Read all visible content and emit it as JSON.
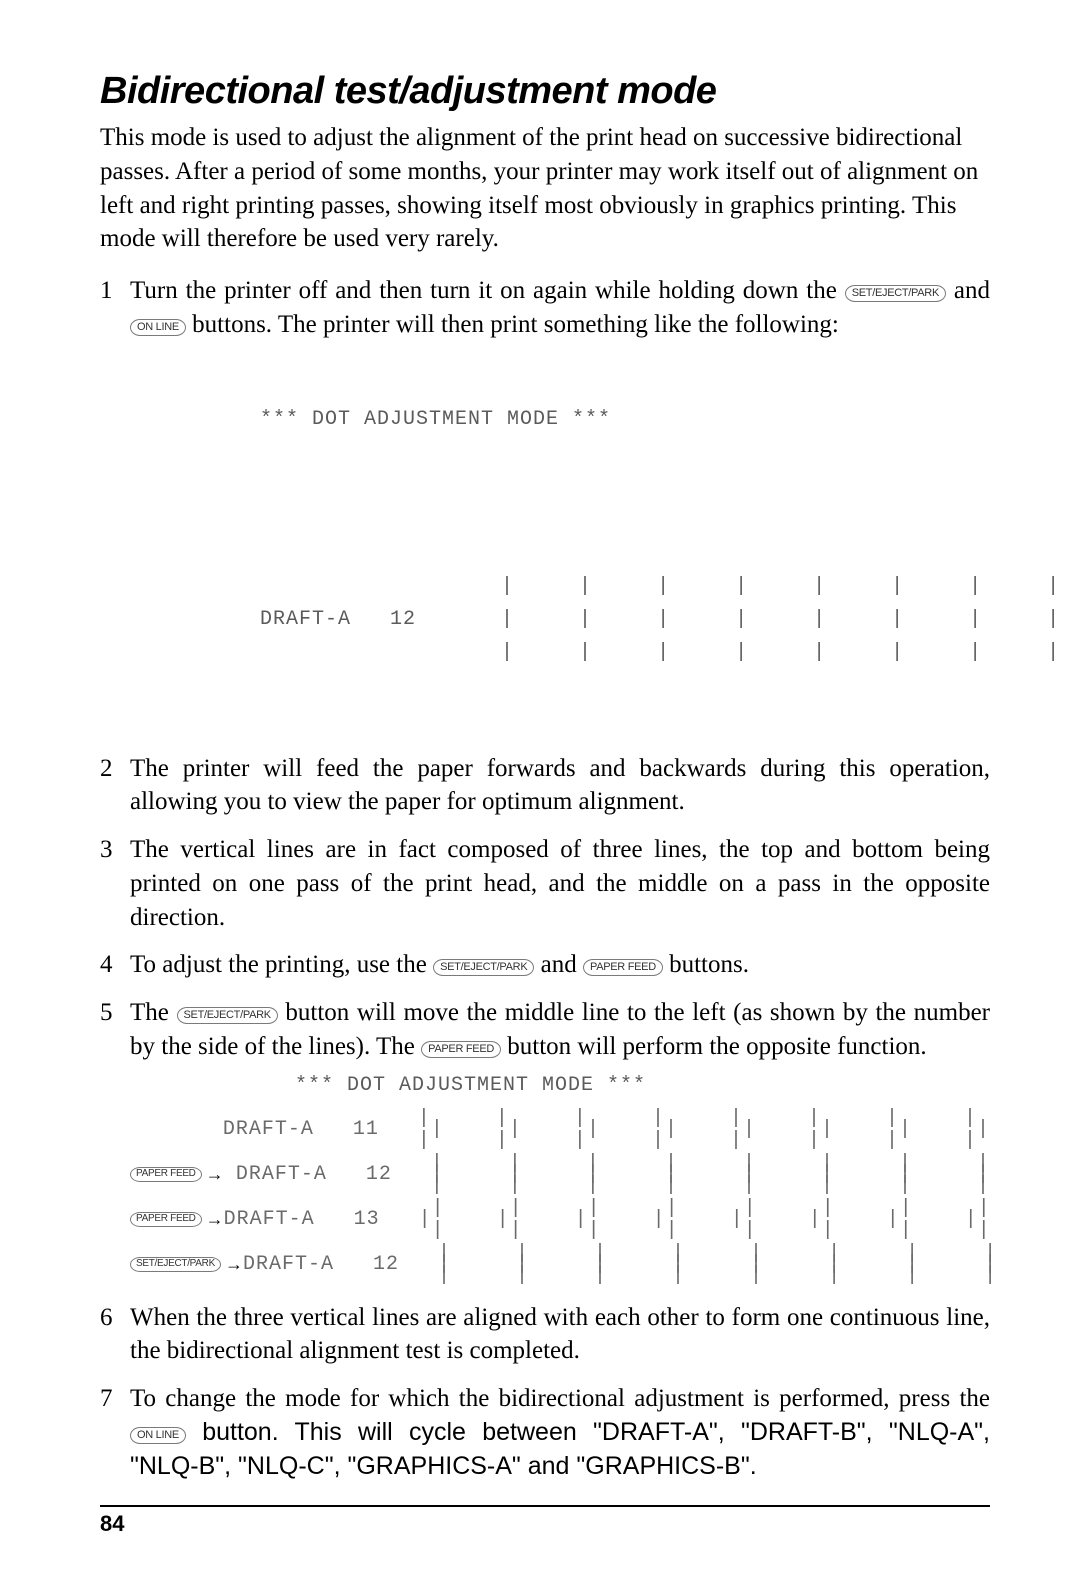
{
  "title": "Bidirectional test/adjustment mode",
  "intro": "This mode is used to adjust the alignment of the print head on successive bidirectional passes. After a period of some months, your printer may work itself out of alignment on left and right printing passes, showing itself most obviously in graphics printing. This mode will therefore be used very rarely.",
  "keys": {
    "set_eject_park": "SET/EJECT/PARK",
    "on_line": "ON LINE",
    "paper_feed": "PAPER FEED"
  },
  "steps": {
    "s1a": "Turn the printer off and then turn it on again while holding down the ",
    "s1b": " and ",
    "s1c": " buttons. The printer will then print something like the following:",
    "s2": "The printer will feed the paper forwards and backwards during this operation, allowing you to view the paper for optimum alignment.",
    "s3": "The vertical lines are in fact composed of three lines, the top and bottom being printed on one pass of the print head, and the middle on a pass in the opposite direction.",
    "s4a": "To adjust the printing, use the ",
    "s4b": " and ",
    "s4c": " buttons.",
    "s5a": "The ",
    "s5b": " button will move the middle line to the left (as shown by the number by the side of the lines). The ",
    "s5c": " button will perform the opposite function.",
    "s6": "When the three vertical lines are aligned with each other to form one continuous line, the bidirectional alignment test is completed.",
    "s7a": "To change the mode for which the bidirectional adjustment is performed, press the ",
    "s7b": " button. This will cycle between \"DRAFT-A\", \"DRAFT-B\", \"NLQ-A\", \"NLQ-B\", \"NLQ-C\", \"GRAPHICS-A\" and \"GRAPHICS-B\"."
  },
  "sample1": {
    "header": "*** DOT ADJUSTMENT MODE ***",
    "line_label": "DRAFT-A   12",
    "tick_top": "     |     |     |     |     |     |     |     |",
    "tick_mid": "     |     |     |     |     |     |     |     |",
    "tick_bot": "     |     |     |     |     |     |     |     |"
  },
  "sample2": {
    "header": "*** DOT ADJUSTMENT MODE ***",
    "rows": [
      {
        "btn": "",
        "label": "DRAFT-A   11",
        "t1": "   |     |     |     |     |     |     |     |",
        "t2": "    |     |     |     |     |     |     |     |",
        "t3": "   |     |     |     |     |     |     |     |"
      },
      {
        "btn": "PAPER FEED",
        "label": "DRAFT-A   12",
        "t1": "   |     |     |     |     |     |     |     |",
        "t2": "   |     |     |     |     |     |     |     |",
        "t3": "   |     |     |     |     |     |     |     |"
      },
      {
        "btn": "PAPER FEED",
        "label": "DRAFT-A   13",
        "t1": "    |     |     |     |     |     |     |     |",
        "t2": "   |     |     |     |     |     |     |     |",
        "t3": "    |     |     |     |     |     |     |     |"
      },
      {
        "btn": "SET/EJECT/PARK",
        "label": "DRAFT-A   12",
        "t1": "   |     |     |     |     |     |     |     |",
        "t2": "   |     |     |     |     |     |     |     |",
        "t3": "   |     |     |     |     |     |     |     |"
      }
    ]
  },
  "page_number": "84"
}
